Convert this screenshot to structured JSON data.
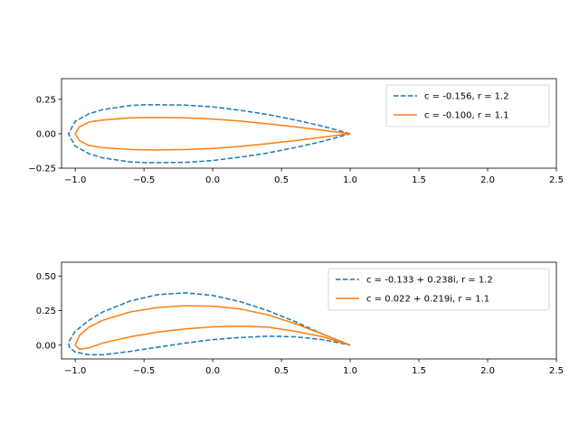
{
  "chart_data": [
    {
      "type": "line",
      "xlim": [
        -1.1,
        2.5
      ],
      "ylim": [
        -0.25,
        0.4
      ],
      "xticks": [
        "−1.0",
        "−0.5",
        "0.0",
        "0.5",
        "1.0",
        "1.5",
        "2.0",
        "2.5"
      ],
      "xtick_values": [
        -1.0,
        -0.5,
        0.0,
        0.5,
        1.0,
        1.5,
        2.0,
        2.5
      ],
      "yticks": [
        "−0.25",
        "0.00",
        "0.25"
      ],
      "ytick_values": [
        -0.25,
        0.0,
        0.25
      ],
      "grid": false,
      "legend_placement": "top-right",
      "series": [
        {
          "name": "c = -0.156, r = 1.2",
          "color": "#1f77b4",
          "style": "dashed",
          "x": [
            1.0,
            0.8,
            0.6,
            0.4,
            0.2,
            0.0,
            -0.2,
            -0.4,
            -0.5,
            -0.6,
            -0.8,
            -0.9,
            -1.0,
            -1.05,
            -1.0,
            -0.9,
            -0.8,
            -0.6,
            -0.5,
            -0.4,
            -0.2,
            0.0,
            0.2,
            0.4,
            0.6,
            0.8,
            1.0
          ],
          "y": [
            0.0,
            0.055,
            0.1,
            0.14,
            0.17,
            0.195,
            0.208,
            0.21,
            0.21,
            0.205,
            0.175,
            0.145,
            0.09,
            0.0,
            -0.09,
            -0.145,
            -0.175,
            -0.205,
            -0.21,
            -0.21,
            -0.208,
            -0.195,
            -0.17,
            -0.14,
            -0.1,
            -0.055,
            0.0
          ]
        },
        {
          "name": "c = -0.100, r = 1.1",
          "color": "#ff7f0e",
          "style": "solid",
          "x": [
            1.0,
            0.8,
            0.6,
            0.4,
            0.2,
            0.0,
            -0.2,
            -0.4,
            -0.5,
            -0.6,
            -0.8,
            -0.9,
            -0.97,
            -1.0,
            -0.97,
            -0.9,
            -0.8,
            -0.6,
            -0.5,
            -0.4,
            -0.2,
            0.0,
            0.2,
            0.4,
            0.6,
            0.8,
            1.0
          ],
          "y": [
            0.0,
            0.025,
            0.05,
            0.072,
            0.092,
            0.107,
            0.115,
            0.118,
            0.117,
            0.115,
            0.1,
            0.085,
            0.05,
            0.0,
            -0.05,
            -0.085,
            -0.1,
            -0.115,
            -0.117,
            -0.118,
            -0.115,
            -0.107,
            -0.092,
            -0.072,
            -0.05,
            -0.025,
            0.0
          ]
        }
      ]
    },
    {
      "type": "line",
      "xlim": [
        -1.1,
        2.5
      ],
      "ylim": [
        -0.1,
        0.6
      ],
      "xticks": [
        "−1.0",
        "−0.5",
        "0.0",
        "0.5",
        "1.0",
        "1.5",
        "2.0",
        "2.5"
      ],
      "xtick_values": [
        -1.0,
        -0.5,
        0.0,
        0.5,
        1.0,
        1.5,
        2.0,
        2.5
      ],
      "yticks": [
        "0.00",
        "0.25",
        "0.50"
      ],
      "ytick_values": [
        0.0,
        0.25,
        0.5
      ],
      "grid": false,
      "legend_placement": "top-right",
      "series": [
        {
          "name": "c = -0.133 + 0.238i, r = 1.2",
          "color": "#1f77b4",
          "style": "dashed",
          "x": [
            1.0,
            0.8,
            0.6,
            0.4,
            0.2,
            0.0,
            -0.2,
            -0.4,
            -0.6,
            -0.8,
            -0.9,
            -1.0,
            -1.05,
            -1.04,
            -1.0,
            -0.9,
            -0.8,
            -0.6,
            -0.4,
            -0.2,
            0.0,
            0.2,
            0.4,
            0.6,
            0.8,
            1.0
          ],
          "y": [
            0.0,
            0.08,
            0.17,
            0.25,
            0.315,
            0.36,
            0.378,
            0.365,
            0.32,
            0.24,
            0.18,
            0.1,
            0.02,
            -0.02,
            -0.05,
            -0.07,
            -0.07,
            -0.045,
            -0.015,
            0.015,
            0.04,
            0.055,
            0.065,
            0.06,
            0.04,
            0.0
          ]
        },
        {
          "name": "c =  0.022 + 0.219i, r = 1.1",
          "color": "#ff7f0e",
          "style": "solid",
          "x": [
            1.0,
            0.8,
            0.6,
            0.4,
            0.2,
            0.0,
            -0.2,
            -0.4,
            -0.6,
            -0.8,
            -0.9,
            -0.97,
            -1.0,
            -0.97,
            -0.9,
            -0.8,
            -0.6,
            -0.4,
            -0.2,
            0.0,
            0.2,
            0.4,
            0.6,
            0.8,
            1.0
          ],
          "y": [
            0.0,
            0.08,
            0.155,
            0.22,
            0.262,
            0.282,
            0.285,
            0.272,
            0.24,
            0.18,
            0.13,
            0.07,
            0.0,
            -0.03,
            -0.02,
            0.015,
            0.06,
            0.095,
            0.118,
            0.132,
            0.137,
            0.13,
            0.1,
            0.06,
            0.0
          ]
        }
      ]
    }
  ]
}
